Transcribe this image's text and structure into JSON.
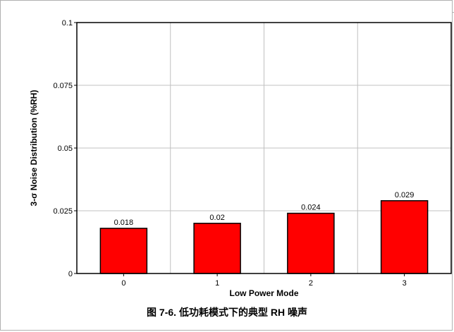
{
  "caption": "图 7-6. 低功耗模式下的典型 RH 噪声",
  "colors": {
    "bar_fill": "#ff0000",
    "bar_stroke": "#000000",
    "grid": "#c0c0c0",
    "axis": "#000000"
  },
  "chart_data": {
    "type": "bar",
    "title": "",
    "xlabel": "Low Power Mode",
    "ylabel": "3-σ Noise Distribution (%RH)",
    "categories": [
      "0",
      "1",
      "2",
      "3"
    ],
    "values": [
      0.018,
      0.02,
      0.024,
      0.029
    ],
    "data_labels": [
      "0.018",
      "0.02",
      "0.024",
      "0.029"
    ],
    "ylim": [
      0,
      0.1
    ],
    "yticks": [
      0,
      0.025,
      0.05,
      0.075,
      0.1
    ],
    "ytick_labels": [
      "0",
      "0.025",
      "0.05",
      "0.075",
      "0.1"
    ],
    "grid": true,
    "legend": "none"
  }
}
